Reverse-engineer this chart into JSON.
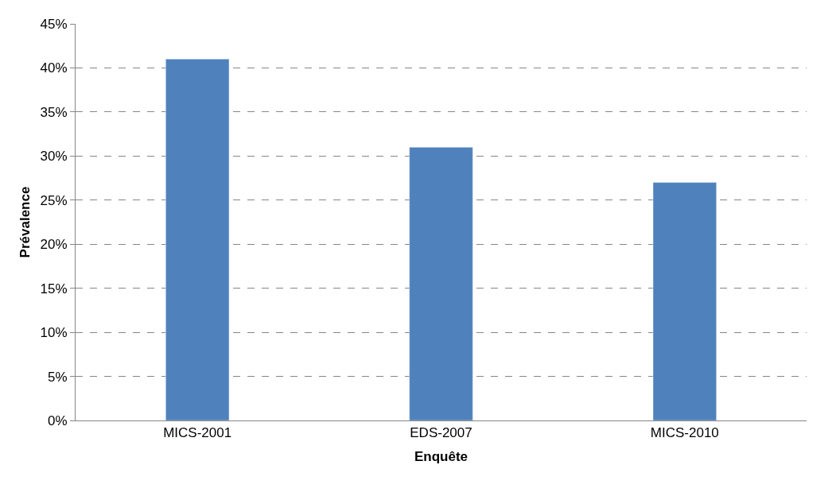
{
  "chart_data": {
    "type": "bar",
    "xlabel": "Enquête",
    "ylabel": "Prévalence",
    "categories": [
      "MICS-2001",
      "EDS-2007",
      "MICS-2010"
    ],
    "values": [
      41,
      31,
      27
    ],
    "color": "#4f81bd",
    "ylim": [
      0,
      45
    ],
    "yticks": [
      {
        "value": 0,
        "label": "0%"
      },
      {
        "value": 5,
        "label": "5%"
      },
      {
        "value": 10,
        "label": "10%"
      },
      {
        "value": 15,
        "label": "15%"
      },
      {
        "value": 20,
        "label": "20%"
      },
      {
        "value": 25,
        "label": "25%"
      },
      {
        "value": 30,
        "label": "30%"
      },
      {
        "value": 35,
        "label": "35%"
      },
      {
        "value": 40,
        "label": "40%"
      },
      {
        "value": 45,
        "label": "45%"
      }
    ],
    "grid": "y",
    "legend": false
  }
}
